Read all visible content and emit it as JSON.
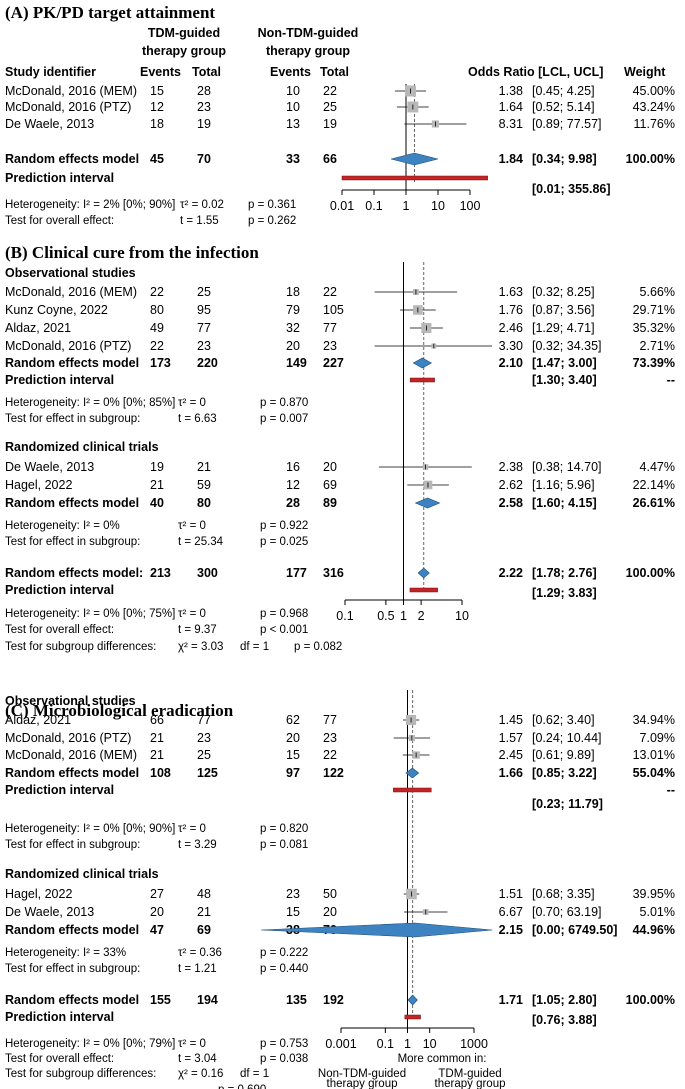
{
  "header": {
    "study": "Study identifier",
    "tdm_group": [
      "TDM-guided",
      "therapy group"
    ],
    "non_tdm_group": [
      "Non-TDM-guided",
      "therapy group"
    ],
    "events": "Events",
    "total": "Total",
    "or": "Odds Ratio [LCL, UCL]",
    "weight": "Weight"
  },
  "footer_axis": {
    "more_common": "More common in:",
    "left_group": [
      "Non-TDM-guided",
      "therapy group"
    ],
    "right_group": [
      "TDM-guided",
      "therapy group"
    ]
  },
  "chart_data": [
    {
      "type": "forest",
      "title": "(A) PK/PD target attainment",
      "scale": "log",
      "xlim": [
        0.01,
        100
      ],
      "ticks": [
        "0.01",
        "0.1",
        "1",
        "10",
        "100"
      ],
      "tick_values": [
        0.01,
        0.1,
        1,
        10,
        100
      ],
      "groups": [
        {
          "name": "",
          "studies": [
            {
              "label": "McDonald, 2016 (MEM)",
              "e1": "15",
              "n1": "28",
              "e2": "10",
              "n2": "22",
              "or": 1.38,
              "lcl": 0.45,
              "ucl": 4.25,
              "or_text": "1.38",
              "ci_text": "[0.45;  4.25]",
              "weight_text": "45.00%",
              "weight": 45.0
            },
            {
              "label": "McDonald, 2016 (PTZ)",
              "e1": "12",
              "n1": "23",
              "e2": "10",
              "n2": "25",
              "or": 1.64,
              "lcl": 0.52,
              "ucl": 5.14,
              "or_text": "1.64",
              "ci_text": "[0.52;  5.14]",
              "weight_text": "43.24%",
              "weight": 43.24
            },
            {
              "label": "De Waele, 2013",
              "e1": "18",
              "n1": "19",
              "e2": "13",
              "n2": "19",
              "or": 8.31,
              "lcl": 0.89,
              "ucl": 77.57,
              "or_text": "8.31",
              "ci_text": "[0.89; 77.57]",
              "weight_text": "11.76%",
              "weight": 11.76
            }
          ]
        }
      ],
      "overall": {
        "label": "Random effects model",
        "e1": "45",
        "n1": "70",
        "e2": "33",
        "n2": "66",
        "or": 1.84,
        "lcl": 0.34,
        "ucl": 9.98,
        "or_text": "1.84",
        "ci_text": "[0.34;  9.98]",
        "weight_text": "100.00%"
      },
      "prediction": {
        "label": "Prediction interval",
        "lcl": 0.01,
        "ucl": 355.86,
        "ci_text": "[0.01; 355.86]"
      },
      "stats": [
        {
          "a": "Heterogeneity: I² = 2% [0%; 90%]",
          "b": "τ² = 0.02",
          "c": "p = 0.361"
        },
        {
          "a": "Test for overall effect:",
          "b": "t = 1.55",
          "c": "p = 0.262"
        }
      ]
    },
    {
      "type": "forest",
      "title": "(B) Clinical cure from the infection",
      "scale": "log",
      "xlim": [
        0.1,
        10
      ],
      "ticks": [
        "0.1",
        "0.5",
        "1",
        "2",
        "10"
      ],
      "tick_values": [
        0.1,
        0.5,
        1,
        2,
        10
      ],
      "groups": [
        {
          "name": "Observational studies",
          "studies": [
            {
              "label": "McDonald, 2016 (MEM)",
              "e1": "22",
              "n1": "25",
              "e2": "18",
              "n2": "22",
              "or": 1.63,
              "lcl": 0.32,
              "ucl": 8.25,
              "or_text": "1.63",
              "ci_text": "[0.32;  8.25]",
              "weight_text": "5.66%",
              "weight": 5.66
            },
            {
              "label": "Kunz Coyne, 2022",
              "e1": "80",
              "n1": "95",
              "e2": "79",
              "n2": "105",
              "or": 1.76,
              "lcl": 0.87,
              "ucl": 3.56,
              "or_text": "1.76",
              "ci_text": "[0.87;  3.56]",
              "weight_text": "29.71%",
              "weight": 29.71
            },
            {
              "label": "Aldaz, 2021",
              "e1": "49",
              "n1": "77",
              "e2": "32",
              "n2": "77",
              "or": 2.46,
              "lcl": 1.29,
              "ucl": 4.71,
              "or_text": "2.46",
              "ci_text": "[1.29;  4.71]",
              "weight_text": "35.32%",
              "weight": 35.32
            },
            {
              "label": "McDonald, 2016 (PTZ)",
              "e1": "22",
              "n1": "23",
              "e2": "20",
              "n2": "23",
              "or": 3.3,
              "lcl": 0.32,
              "ucl": 34.35,
              "or_text": "3.30",
              "ci_text": "[0.32; 34.35]",
              "weight_text": "2.71%",
              "weight": 2.71
            }
          ],
          "model": {
            "label": "Random effects model",
            "e1": "173",
            "n1": "220",
            "e2": "149",
            "n2": "227",
            "or": 2.1,
            "lcl": 1.47,
            "ucl": 3.0,
            "or_text": "2.10",
            "ci_text": "[1.47;  3.00]",
            "weight_text": "73.39%"
          },
          "prediction": {
            "label": "Prediction interval",
            "lcl": 1.3,
            "ucl": 3.4,
            "ci_text": "[1.30;  3.40]",
            "weight_text": "--"
          },
          "stats": [
            {
              "a": "Heterogeneity: I² = 0% [0%; 85%]",
              "b": "τ² = 0",
              "c": "p = 0.870"
            },
            {
              "a": "Test for effect in subgroup:",
              "b": "t = 6.63",
              "c": "p = 0.007"
            }
          ]
        },
        {
          "name": "Randomized clinical trials",
          "studies": [
            {
              "label": "De Waele, 2013",
              "e1": "19",
              "n1": "21",
              "e2": "16",
              "n2": "20",
              "or": 2.38,
              "lcl": 0.38,
              "ucl": 14.7,
              "or_text": "2.38",
              "ci_text": "[0.38; 14.70]",
              "weight_text": "4.47%",
              "weight": 4.47
            },
            {
              "label": "Hagel, 2022",
              "e1": "21",
              "n1": "59",
              "e2": "12",
              "n2": "69",
              "or": 2.62,
              "lcl": 1.16,
              "ucl": 5.96,
              "or_text": "2.62",
              "ci_text": "[1.16;  5.96]",
              "weight_text": "22.14%",
              "weight": 22.14
            }
          ],
          "model": {
            "label": "Random effects model",
            "e1": "40",
            "n1": "80",
            "e2": "28",
            "n2": "89",
            "or": 2.58,
            "lcl": 1.6,
            "ucl": 4.15,
            "or_text": "2.58",
            "ci_text": "[1.60;  4.15]",
            "weight_text": "26.61%"
          },
          "stats": [
            {
              "a": "Heterogeneity: I² = 0%",
              "b": "τ² = 0",
              "c": "p = 0.922"
            },
            {
              "a": "Test for effect in subgroup:",
              "b": "t = 25.34",
              "c": "p = 0.025"
            }
          ]
        }
      ],
      "overall": {
        "label": "Random effects model:",
        "e1": "213",
        "n1": "300",
        "e2": "177",
        "n2": "316",
        "or": 2.22,
        "lcl": 1.78,
        "ucl": 2.76,
        "or_text": "2.22",
        "ci_text": "[1.78;  2.76]",
        "weight_text": "100.00%"
      },
      "prediction": {
        "label": "Prediction interval",
        "lcl": 1.29,
        "ucl": 3.83,
        "ci_text": "[1.29;  3.83]"
      },
      "stats": [
        {
          "a": "Heterogeneity: I² = 0% [0%; 75%]",
          "b": "τ² = 0",
          "c": "p = 0.968"
        },
        {
          "a": "Test for overall effect:",
          "b": "t = 9.37",
          "c": "p < 0.001"
        },
        {
          "a": "Test for subgroup differences:",
          "b": "χ² = 3.03",
          "b2": "df = 1",
          "c": "p = 0.082"
        }
      ]
    },
    {
      "type": "forest",
      "title": "(C) Microbiological eradication",
      "scale": "log",
      "xlim": [
        0.001,
        1000
      ],
      "ticks": [
        "0.001",
        "0.1",
        "1",
        "10",
        "1000"
      ],
      "tick_values": [
        0.001,
        0.1,
        1,
        10,
        1000
      ],
      "groups": [
        {
          "name": "Observational studies",
          "studies": [
            {
              "label": "Aldaz, 2021",
              "e1": "66",
              "n1": "77",
              "e2": "62",
              "n2": "77",
              "or": 1.45,
              "lcl": 0.62,
              "ucl": 3.4,
              "or_text": "1.45",
              "ci_text": "[0.62;  3.40]",
              "weight_text": "34.94%",
              "weight": 34.94
            },
            {
              "label": "McDonald, 2016 (PTZ)",
              "e1": "21",
              "n1": "23",
              "e2": "20",
              "n2": "23",
              "or": 1.57,
              "lcl": 0.24,
              "ucl": 10.44,
              "or_text": "1.57",
              "ci_text": "[0.24; 10.44]",
              "weight_text": "7.09%",
              "weight": 7.09
            },
            {
              "label": "McDonald, 2016 (MEM)",
              "e1": "21",
              "n1": "25",
              "e2": "15",
              "n2": "22",
              "or": 2.45,
              "lcl": 0.61,
              "ucl": 9.89,
              "or_text": "2.45",
              "ci_text": "[0.61;  9.89]",
              "weight_text": "13.01%",
              "weight": 13.01
            }
          ],
          "model": {
            "label": "Random effects model",
            "e1": "108",
            "n1": "125",
            "e2": "97",
            "n2": "122",
            "or": 1.66,
            "lcl": 0.85,
            "ucl": 3.22,
            "or_text": "1.66",
            "ci_text": "[0.85;  3.22]",
            "weight_text": "55.04%"
          },
          "prediction": {
            "label": "Prediction interval",
            "lcl": 0.23,
            "ucl": 11.79,
            "ci_text": "[0.23;  11.79]",
            "weight_text": "--"
          },
          "stats": [
            {
              "a": "Heterogeneity: I² = 0% [0%; 90%]",
              "b": "τ² = 0",
              "c": "p = 0.820"
            },
            {
              "a": "Test for effect in subgroup:",
              "b": "t = 3.29",
              "c": "p = 0.081"
            }
          ]
        },
        {
          "name": "Randomized clinical trials",
          "studies": [
            {
              "label": "Hagel, 2022",
              "e1": "27",
              "n1": "48",
              "e2": "23",
              "n2": "50",
              "or": 1.51,
              "lcl": 0.68,
              "ucl": 3.35,
              "or_text": "1.51",
              "ci_text": "[0.68;  3.35]",
              "weight_text": "39.95%",
              "weight": 39.95
            },
            {
              "label": "De Waele, 2013",
              "e1": "20",
              "n1": "21",
              "e2": "15",
              "n2": "20",
              "or": 6.67,
              "lcl": 0.7,
              "ucl": 63.19,
              "or_text": "6.67",
              "ci_text": "[0.70; 63.19]",
              "weight_text": "5.01%",
              "weight": 5.01
            }
          ],
          "model": {
            "label": "Random effects model",
            "e1": "47",
            "n1": "69",
            "e2": "38",
            "n2": "70",
            "or": 2.15,
            "lcl": 0.0,
            "ucl": 6749.5,
            "or_text": "2.15",
            "ci_text": "[0.00; 6749.50]",
            "weight_text": "44.96%"
          },
          "stats": [
            {
              "a": "Heterogeneity: I² = 33%",
              "b": "τ² = 0.36",
              "c": "p = 0.222"
            },
            {
              "a": "Test for effect in subgroup:",
              "b": "t = 1.21",
              "c": "p = 0.440"
            }
          ]
        }
      ],
      "overall": {
        "label": "Random effects model",
        "e1": "155",
        "n1": "194",
        "e2": "135",
        "n2": "192",
        "or": 1.71,
        "lcl": 1.05,
        "ucl": 2.8,
        "or_text": "1.71",
        "ci_text": "[1.05;  2.80]",
        "weight_text": "100.00%"
      },
      "prediction": {
        "label": "Prediction interval",
        "lcl": 0.76,
        "ucl": 3.88,
        "ci_text": "[0.76;  3.88]"
      },
      "stats": [
        {
          "a": "Heterogeneity: I² = 0% [0%; 79%]",
          "b": "τ² = 0",
          "c": "p = 0.753"
        },
        {
          "a": "Test for overall effect:",
          "b": "t = 3.04",
          "c": "p = 0.038"
        },
        {
          "a": "Test for subgroup differences:",
          "b": "χ² = 0.16",
          "b2": "df = 1",
          "c": "p = 0.690"
        }
      ]
    }
  ]
}
